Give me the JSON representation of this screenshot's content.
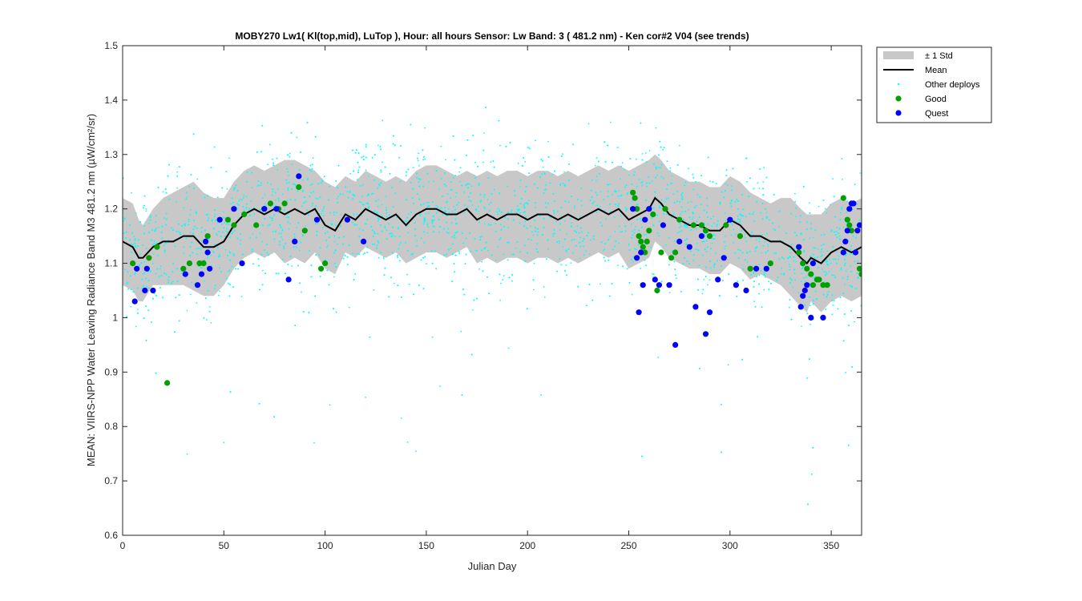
{
  "chart_data": {
    "type": "scatter",
    "title": "MOBY270   Lw1( Kl(top,mid), LuTop ),   Hour: all hours  Sensor: Lw Band: 3 ( 481.2 nm)  - Ken cor#2 V04 (see trends)",
    "xlabel": "Julian Day",
    "ylabel": "MEAN: VIIRS-NPP Water Leaving Radiance Band M3 481.2 nm (µW/cm²/sr)",
    "xlim": [
      0,
      365
    ],
    "ylim": [
      0.6,
      1.5
    ],
    "xticks": [
      0,
      50,
      100,
      150,
      200,
      250,
      300,
      350
    ],
    "xtick_labels": [
      "0",
      "50",
      "100",
      "150",
      "200",
      "250",
      "300",
      "350"
    ],
    "yticks": [
      0.6,
      0.7,
      0.8,
      0.9,
      1.0,
      1.1,
      1.2,
      1.3,
      1.4,
      1.5
    ],
    "ytick_labels": [
      "0.6",
      "0.7",
      "0.8",
      "0.9",
      "1",
      "1.1",
      "1.2",
      "1.3",
      "1.4",
      "1.5"
    ],
    "grid": false,
    "legend_position": "outside-top-right",
    "legend": [
      {
        "label": "± 1 Std",
        "kind": "band",
        "color": "#c8c8c8"
      },
      {
        "label": "Mean",
        "kind": "line",
        "color": "#000000"
      },
      {
        "label": "Other deploys",
        "kind": "dot",
        "color": "#00ffff"
      },
      {
        "label": "Good",
        "kind": "marker",
        "color": "#00a000"
      },
      {
        "label": "Quest",
        "kind": "marker",
        "color": "#0000ff"
      }
    ],
    "mean": {
      "x": [
        0,
        5,
        8,
        10,
        15,
        20,
        25,
        30,
        35,
        40,
        45,
        50,
        55,
        60,
        65,
        70,
        75,
        80,
        85,
        90,
        95,
        100,
        105,
        110,
        115,
        120,
        125,
        130,
        135,
        140,
        145,
        150,
        155,
        160,
        165,
        170,
        175,
        180,
        185,
        190,
        195,
        200,
        205,
        210,
        215,
        220,
        225,
        230,
        235,
        240,
        245,
        250,
        255,
        260,
        263,
        266,
        270,
        275,
        280,
        285,
        290,
        295,
        300,
        305,
        310,
        315,
        320,
        325,
        330,
        335,
        338,
        340,
        345,
        350,
        355,
        360,
        365
      ],
      "y": [
        1.14,
        1.13,
        1.11,
        1.11,
        1.13,
        1.14,
        1.14,
        1.15,
        1.15,
        1.13,
        1.13,
        1.14,
        1.17,
        1.19,
        1.2,
        1.19,
        1.2,
        1.19,
        1.2,
        1.19,
        1.2,
        1.17,
        1.16,
        1.19,
        1.18,
        1.2,
        1.19,
        1.18,
        1.19,
        1.17,
        1.19,
        1.2,
        1.2,
        1.19,
        1.19,
        1.2,
        1.18,
        1.19,
        1.18,
        1.19,
        1.19,
        1.18,
        1.19,
        1.19,
        1.18,
        1.19,
        1.18,
        1.19,
        1.2,
        1.19,
        1.2,
        1.18,
        1.19,
        1.2,
        1.22,
        1.21,
        1.19,
        1.18,
        1.17,
        1.17,
        1.16,
        1.16,
        1.18,
        1.17,
        1.15,
        1.15,
        1.14,
        1.14,
        1.13,
        1.11,
        1.1,
        1.11,
        1.1,
        1.12,
        1.13,
        1.12,
        1.13
      ]
    },
    "std": {
      "x": [
        0,
        5,
        8,
        10,
        15,
        20,
        25,
        30,
        35,
        40,
        45,
        50,
        55,
        60,
        65,
        70,
        75,
        80,
        85,
        90,
        95,
        100,
        105,
        110,
        115,
        120,
        125,
        130,
        135,
        140,
        145,
        150,
        155,
        160,
        165,
        170,
        175,
        180,
        185,
        190,
        195,
        200,
        205,
        210,
        215,
        220,
        225,
        230,
        235,
        240,
        245,
        250,
        255,
        260,
        263,
        266,
        270,
        275,
        280,
        285,
        290,
        295,
        300,
        305,
        310,
        315,
        320,
        325,
        330,
        335,
        338,
        340,
        345,
        350,
        355,
        360,
        365
      ],
      "upper": [
        1.22,
        1.21,
        1.18,
        1.17,
        1.2,
        1.22,
        1.23,
        1.24,
        1.25,
        1.23,
        1.22,
        1.22,
        1.25,
        1.27,
        1.28,
        1.27,
        1.28,
        1.29,
        1.29,
        1.28,
        1.27,
        1.25,
        1.24,
        1.26,
        1.25,
        1.27,
        1.26,
        1.25,
        1.26,
        1.25,
        1.27,
        1.28,
        1.28,
        1.27,
        1.26,
        1.27,
        1.26,
        1.27,
        1.26,
        1.27,
        1.27,
        1.26,
        1.27,
        1.27,
        1.26,
        1.27,
        1.26,
        1.27,
        1.28,
        1.27,
        1.28,
        1.27,
        1.28,
        1.29,
        1.3,
        1.29,
        1.27,
        1.26,
        1.25,
        1.25,
        1.24,
        1.24,
        1.26,
        1.25,
        1.23,
        1.22,
        1.21,
        1.22,
        1.22,
        1.2,
        1.19,
        1.19,
        1.19,
        1.21,
        1.22,
        1.21,
        1.22
      ],
      "lower": [
        1.06,
        1.05,
        1.03,
        1.03,
        1.06,
        1.06,
        1.06,
        1.06,
        1.05,
        1.04,
        1.04,
        1.06,
        1.09,
        1.11,
        1.12,
        1.11,
        1.12,
        1.1,
        1.11,
        1.1,
        1.12,
        1.09,
        1.08,
        1.12,
        1.11,
        1.13,
        1.12,
        1.11,
        1.12,
        1.1,
        1.11,
        1.12,
        1.12,
        1.11,
        1.12,
        1.13,
        1.1,
        1.11,
        1.1,
        1.11,
        1.11,
        1.1,
        1.11,
        1.11,
        1.1,
        1.11,
        1.1,
        1.11,
        1.12,
        1.11,
        1.12,
        1.09,
        1.1,
        1.11,
        1.14,
        1.13,
        1.11,
        1.1,
        1.09,
        1.09,
        1.08,
        1.08,
        1.1,
        1.09,
        1.07,
        1.08,
        1.07,
        1.06,
        1.04,
        1.02,
        1.01,
        1.03,
        1.01,
        1.03,
        1.04,
        1.03,
        1.04
      ]
    },
    "series": [
      {
        "name": "Good",
        "color": "#00a000",
        "x": [
          5,
          13,
          17,
          22,
          30,
          33,
          38,
          40,
          42,
          52,
          55,
          60,
          66,
          70,
          73,
          77,
          80,
          87,
          90,
          98,
          100,
          252,
          253,
          254,
          255,
          256,
          257,
          258,
          259,
          260,
          262,
          264,
          266,
          268,
          271,
          273,
          275,
          282,
          286,
          288,
          290,
          298,
          305,
          310,
          320,
          334,
          336,
          338,
          340,
          341,
          343,
          344,
          346,
          348,
          356,
          358,
          359,
          360,
          362,
          364,
          365
        ],
        "y": [
          1.1,
          1.11,
          1.13,
          0.88,
          1.09,
          1.1,
          1.1,
          1.1,
          1.15,
          1.18,
          1.17,
          1.19,
          1.17,
          1.2,
          1.21,
          1.2,
          1.21,
          1.24,
          1.16,
          1.09,
          1.1,
          1.23,
          1.22,
          1.2,
          1.15,
          1.14,
          1.13,
          1.12,
          1.14,
          1.16,
          1.19,
          1.05,
          1.12,
          1.2,
          1.11,
          1.12,
          1.18,
          1.17,
          1.17,
          1.16,
          1.15,
          1.17,
          1.15,
          1.09,
          1.1,
          1.12,
          1.1,
          1.09,
          1.08,
          1.06,
          1.07,
          1.07,
          1.06,
          1.06,
          1.22,
          1.18,
          1.17,
          1.16,
          1.12,
          1.09,
          1.08
        ]
      },
      {
        "name": "Quest",
        "color": "#0000ff",
        "x": [
          6,
          7,
          11,
          12,
          15,
          31,
          37,
          39,
          41,
          42,
          43,
          48,
          55,
          59,
          70,
          76,
          82,
          85,
          87,
          96,
          111,
          119,
          252,
          254,
          255,
          256,
          257,
          258,
          260,
          263,
          265,
          267,
          270,
          273,
          275,
          280,
          283,
          286,
          288,
          290,
          294,
          297,
          300,
          303,
          308,
          313,
          318,
          334,
          335,
          336,
          337,
          338,
          340,
          341,
          346,
          356,
          357,
          358,
          359,
          360,
          361,
          362,
          363,
          364
        ],
        "y": [
          1.03,
          1.09,
          1.05,
          1.09,
          1.05,
          1.08,
          1.06,
          1.08,
          1.14,
          1.12,
          1.09,
          1.18,
          1.2,
          1.1,
          1.2,
          1.2,
          1.07,
          1.14,
          1.26,
          1.18,
          1.18,
          1.14,
          1.2,
          1.11,
          1.01,
          1.12,
          1.06,
          1.18,
          1.2,
          1.07,
          1.06,
          1.17,
          1.06,
          0.95,
          1.14,
          1.13,
          1.02,
          1.15,
          0.97,
          1.01,
          1.07,
          1.11,
          1.18,
          1.06,
          1.05,
          1.09,
          1.09,
          1.13,
          1.02,
          1.04,
          1.05,
          1.06,
          1.0,
          1.1,
          1.0,
          1.12,
          1.14,
          1.16,
          1.2,
          1.21,
          1.21,
          1.12,
          1.16,
          1.17
        ]
      }
    ]
  }
}
